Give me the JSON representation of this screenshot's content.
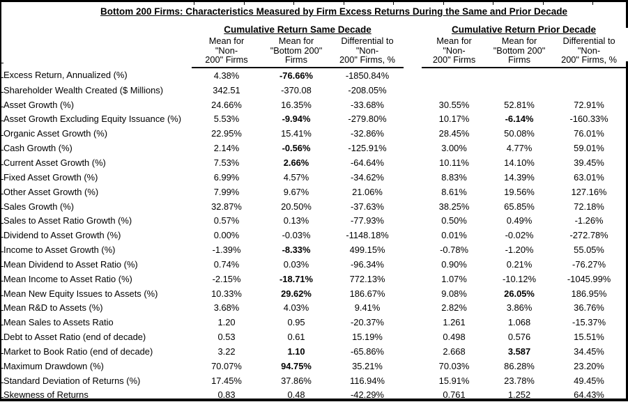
{
  "title": "Bottom 200 Firms: Characteristics Measured by Firm Excess Returns During the Same and Prior Decade",
  "table": {
    "groups": [
      {
        "label": "Cumulative Return Same Decade"
      },
      {
        "label": "Cumulative Return Prior Decade"
      }
    ],
    "column_headers": [
      "Mean for\n\"Non-\n200\" Firms",
      "Mean for\n\"Bottom 200\"\nFirms",
      "Differential to\n\"Non-\n200\" Firms, %",
      "Mean for\n\"Non-\n200\" Firms",
      "Mean for\n\"Bottom 200\"\nFirms",
      "Differential to\n\"Non-\n200\" Firms, %"
    ],
    "rows": [
      {
        "label": "Excess Return, Annualized (%)",
        "values": [
          "4.38%",
          "-76.66%",
          "-1850.84%",
          "",
          "",
          ""
        ],
        "bold": [
          1
        ]
      },
      {
        "label": "Shareholder Wealth Created ($ Millions)",
        "values": [
          "342.51",
          "-370.08",
          "-208.05%",
          "",
          "",
          ""
        ],
        "bold": []
      },
      {
        "label": "Asset Growth (%)",
        "values": [
          "24.66%",
          "16.35%",
          "-33.68%",
          "30.55%",
          "52.81%",
          "72.91%"
        ],
        "bold": []
      },
      {
        "label": "Asset Growth Excluding Equity Issuance (%)",
        "values": [
          "5.53%",
          "-9.94%",
          "-279.80%",
          "10.17%",
          "-6.14%",
          "-160.33%"
        ],
        "bold": [
          1,
          4
        ]
      },
      {
        "label": "Organic Asset Growth (%)",
        "values": [
          "22.95%",
          "15.41%",
          "-32.86%",
          "28.45%",
          "50.08%",
          "76.01%"
        ],
        "bold": []
      },
      {
        "label": "Cash Growth (%)",
        "values": [
          "2.14%",
          "-0.56%",
          "-125.91%",
          "3.00%",
          "4.77%",
          "59.01%"
        ],
        "bold": [
          1
        ]
      },
      {
        "label": "Current Asset Growth (%)",
        "values": [
          "7.53%",
          "2.66%",
          "-64.64%",
          "10.11%",
          "14.10%",
          "39.45%"
        ],
        "bold": [
          1
        ]
      },
      {
        "label": "Fixed Asset Growth (%)",
        "values": [
          "6.99%",
          "4.57%",
          "-34.62%",
          "8.83%",
          "14.39%",
          "63.01%"
        ],
        "bold": []
      },
      {
        "label": "Other Asset Growth (%)",
        "values": [
          "7.99%",
          "9.67%",
          "21.06%",
          "8.61%",
          "19.56%",
          "127.16%"
        ],
        "bold": []
      },
      {
        "label": "Sales Growth (%)",
        "values": [
          "32.87%",
          "20.50%",
          "-37.63%",
          "38.25%",
          "65.85%",
          "72.18%"
        ],
        "bold": []
      },
      {
        "label": "Sales to Asset Ratio Growth (%)",
        "values": [
          "0.57%",
          "0.13%",
          "-77.93%",
          "0.50%",
          "0.49%",
          "-1.26%"
        ],
        "bold": []
      },
      {
        "label": "Dividend to Asset Growth (%)",
        "values": [
          "0.00%",
          "-0.03%",
          "-1148.18%",
          "0.01%",
          "-0.02%",
          "-272.78%"
        ],
        "bold": []
      },
      {
        "label": "Income to Asset Growth (%)",
        "values": [
          "-1.39%",
          "-8.33%",
          "499.15%",
          "-0.78%",
          "-1.20%",
          "55.05%"
        ],
        "bold": [
          1
        ]
      },
      {
        "label": "Mean Dividend to Asset Ratio (%)",
        "values": [
          "0.74%",
          "0.03%",
          "-96.34%",
          "0.90%",
          "0.21%",
          "-76.27%"
        ],
        "bold": []
      },
      {
        "label": "Mean Income to Asset Ratio (%)",
        "values": [
          "-2.15%",
          "-18.71%",
          "772.13%",
          "1.07%",
          "-10.12%",
          "-1045.99%"
        ],
        "bold": [
          1
        ]
      },
      {
        "label": "Mean New Equity Issues to Assets (%)",
        "values": [
          "10.33%",
          "29.62%",
          "186.67%",
          "9.08%",
          "26.05%",
          "186.95%"
        ],
        "bold": [
          1,
          4
        ]
      },
      {
        "label": "Mean R&D to Assets (%)",
        "values": [
          "3.68%",
          "4.03%",
          "9.41%",
          "2.82%",
          "3.86%",
          "36.76%"
        ],
        "bold": []
      },
      {
        "label": "Mean Sales to Assets Ratio",
        "values": [
          "1.20",
          "0.95",
          "-20.37%",
          "1.261",
          "1.068",
          "-15.37%"
        ],
        "bold": []
      },
      {
        "label": "Debt to Asset Ratio (end of decade)",
        "values": [
          "0.53",
          "0.61",
          "15.19%",
          "0.498",
          "0.576",
          "15.51%"
        ],
        "bold": []
      },
      {
        "label": "Market to Book Ratio (end of decade)",
        "values": [
          "3.22",
          "1.10",
          "-65.86%",
          "2.668",
          "3.587",
          "34.45%"
        ],
        "bold": [
          1,
          4
        ]
      },
      {
        "label": "Maximum Drawdown (%)",
        "values": [
          "70.07%",
          "94.75%",
          "35.21%",
          "70.03%",
          "86.28%",
          "23.20%"
        ],
        "bold": [
          1
        ]
      },
      {
        "label": "Standard Deviation of Returns (%)",
        "values": [
          "17.45%",
          "37.86%",
          "116.94%",
          "15.91%",
          "23.78%",
          "49.45%"
        ],
        "bold": []
      },
      {
        "label": "Skewness of Returns",
        "values": [
          "0.83",
          "0.48",
          "-42.29%",
          "0.761",
          "1.252",
          "64.43%"
        ],
        "bold": []
      }
    ]
  }
}
